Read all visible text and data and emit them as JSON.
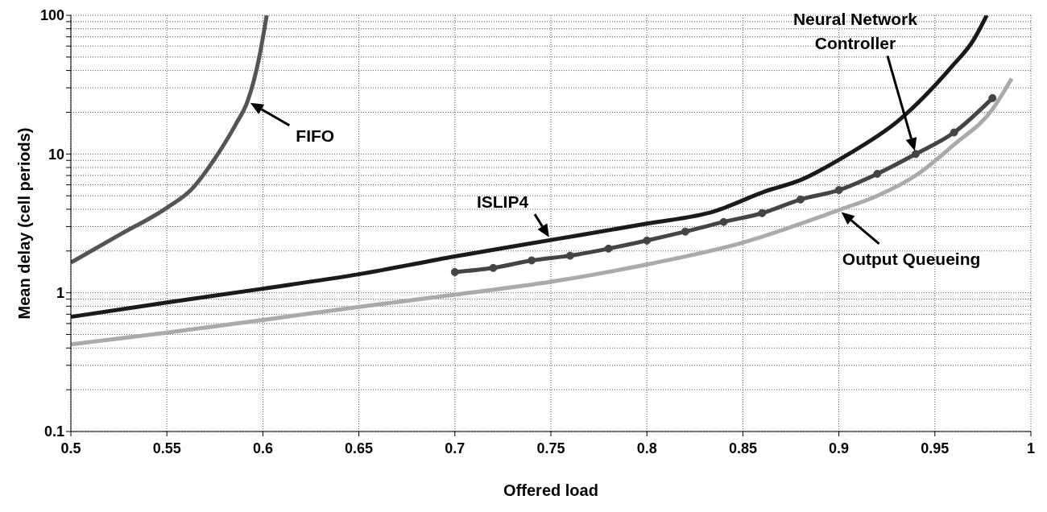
{
  "chart_data": {
    "type": "line",
    "xlabel": "Offered load",
    "ylabel": "Mean delay (cell periods)",
    "xlim": [
      0.5,
      1
    ],
    "xticks": [
      0.5,
      0.55,
      0.6,
      0.65,
      0.7,
      0.75,
      0.8,
      0.85,
      0.9,
      0.95,
      1
    ],
    "ylim": [
      0.1,
      100
    ],
    "log": "y",
    "yticks": [
      0.1,
      {
        "value": 0.2,
        "label": null
      },
      {
        "value": 0.3,
        "label": null
      },
      {
        "value": 0.4,
        "label": null
      },
      {
        "value": 0.5,
        "label": null
      },
      {
        "value": 0.6,
        "label": null
      },
      {
        "value": 0.7,
        "label": null
      },
      {
        "value": 0.8,
        "label": null
      },
      {
        "value": 0.9,
        "label": null
      },
      1,
      {
        "value": 2,
        "label": null
      },
      {
        "value": 3,
        "label": null
      },
      {
        "value": 4,
        "label": null
      },
      {
        "value": 5,
        "label": null
      },
      {
        "value": 6,
        "label": null
      },
      {
        "value": 7,
        "label": null
      },
      {
        "value": 8,
        "label": null
      },
      {
        "value": 9,
        "label": null
      },
      10,
      {
        "value": 20,
        "label": null
      },
      {
        "value": 30,
        "label": null
      },
      {
        "value": 40,
        "label": null
      },
      {
        "value": 50,
        "label": null
      },
      {
        "value": 60,
        "label": null
      },
      {
        "value": 70,
        "label": null
      },
      {
        "value": 80,
        "label": null
      },
      {
        "value": 90,
        "label": null
      },
      100
    ],
    "grid": true,
    "legend": false,
    "line_style": "solid",
    "series": [
      {
        "name": "FIFO",
        "color": "#555555",
        "marker": "none",
        "x": [
          0.5,
          0.525,
          0.55,
          0.5625,
          0.5755,
          0.586,
          0.592,
          0.598,
          0.602
        ],
        "values": [
          1.65,
          2.6,
          4.1,
          5.5,
          9.5,
          16.5,
          24,
          49,
          100
        ]
      },
      {
        "name": "ISLIP4",
        "color": "#1a1a1a",
        "marker": "none",
        "x": [
          0.5,
          0.55,
          0.6,
          0.65,
          0.7,
          0.75,
          0.8,
          0.835,
          0.862,
          0.88,
          0.904,
          0.931,
          0.959,
          0.97,
          0.977
        ],
        "values": [
          0.67,
          0.85,
          1.07,
          1.36,
          1.83,
          2.4,
          3.15,
          3.86,
          5.4,
          6.5,
          9.8,
          17.4,
          43,
          66,
          100
        ]
      },
      {
        "name": "Neural Network Controller",
        "color": "#444444",
        "marker": "circle",
        "x": [
          0.7,
          0.72,
          0.74,
          0.76,
          0.78,
          0.8,
          0.82,
          0.84,
          0.86,
          0.88,
          0.9,
          0.92,
          0.94,
          0.96,
          0.98
        ],
        "values": [
          1.41,
          1.51,
          1.71,
          1.85,
          2.08,
          2.38,
          2.76,
          3.24,
          3.75,
          4.7,
          5.5,
          7.2,
          10,
          14.3,
          25.3
        ]
      },
      {
        "name": "Output Queueing",
        "color": "#aaaaaa",
        "marker": "none",
        "x": [
          0.5,
          0.55,
          0.6,
          0.65,
          0.7,
          0.75,
          0.8,
          0.85,
          0.9,
          0.92,
          0.94,
          0.96,
          0.98,
          0.99
        ],
        "values": [
          0.425,
          0.515,
          0.637,
          0.79,
          0.97,
          1.2,
          1.6,
          2.3,
          3.95,
          5,
          7,
          11.7,
          21,
          35
        ]
      }
    ]
  }
}
